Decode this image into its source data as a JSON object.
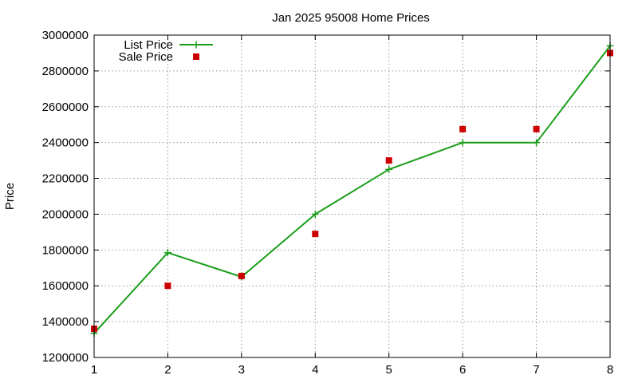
{
  "chart_data": {
    "type": "line",
    "title": "Jan 2025 95008 Home Prices",
    "xlabel": "",
    "ylabel": "Price",
    "xlim": [
      1,
      8
    ],
    "ylim": [
      1200000,
      3000000
    ],
    "x_ticks": [
      1,
      2,
      3,
      4,
      5,
      6,
      7,
      8
    ],
    "y_ticks": [
      1200000,
      1400000,
      1600000,
      1800000,
      2000000,
      2200000,
      2400000,
      2600000,
      2800000,
      3000000
    ],
    "grid": true,
    "legend_position": "top-left",
    "series": [
      {
        "name": "List Price",
        "style": "linespoints",
        "marker": "plus",
        "color": "#1a9e1a",
        "x": [
          1,
          2,
          3,
          4,
          5,
          6,
          7,
          8
        ],
        "y": [
          1335000,
          1785000,
          1650000,
          2000000,
          2250000,
          2400000,
          2400000,
          2940000
        ]
      },
      {
        "name": "Sale Price",
        "style": "points",
        "marker": "square",
        "color": "#cc0000",
        "x": [
          1,
          2,
          3,
          4,
          5,
          6,
          7,
          8
        ],
        "y": [
          1360000,
          1600000,
          1655000,
          1890000,
          2300000,
          2475000,
          2475000,
          2900000
        ]
      }
    ]
  }
}
